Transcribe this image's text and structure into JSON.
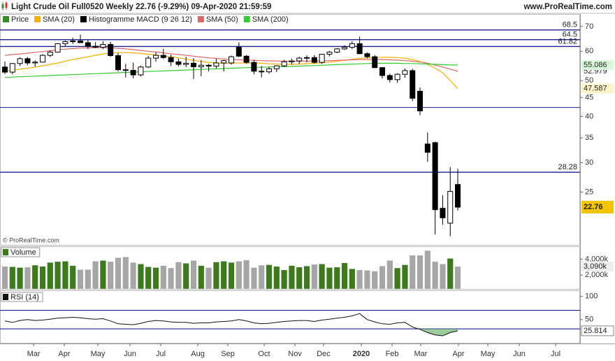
{
  "header": {
    "title": "Light Crude Oil Full0520 Weekly 22.76 (-9.29%) 09-Apr-2020 21:59:59",
    "site": "www.ProRealTime.com",
    "copyright": "© ProRealTime.com"
  },
  "chart_data": [
    {
      "type": "candlestick",
      "log_scale": true,
      "ylim": [
        18,
        75
      ],
      "xlim": [
        -0.648,
        76.2
      ],
      "yticks": [
        25,
        30,
        35,
        40,
        45,
        50,
        60,
        70
      ],
      "levels": [
        68.5,
        64.5,
        61.82,
        28.28
      ],
      "unlabeled_levels": [
        42.3
      ],
      "level_color": "#1f1f8f",
      "price_name": "Price",
      "up_color": "#ffffff",
      "down_color": "#000000",
      "legend_extra": {
        "name": "Histogramme MACD (9 26 12)",
        "color": "#000000"
      },
      "ohlc": [
        [
          54.4,
          56.3,
          52.1,
          52.7
        ],
        [
          52.7,
          55.8,
          52.0,
          55.6
        ],
        [
          55.6,
          57.8,
          54.8,
          57.3
        ],
        [
          57.3,
          57.9,
          55.0,
          55.8
        ],
        [
          55.8,
          56.7,
          54.5,
          56.1
        ],
        [
          56.1,
          58.9,
          55.9,
          58.5
        ],
        [
          58.5,
          60.4,
          57.9,
          59.7
        ],
        [
          59.7,
          63.1,
          59.5,
          62.9
        ],
        [
          62.9,
          64.2,
          61.9,
          63.7
        ],
        [
          63.7,
          65.3,
          62.8,
          64.0
        ],
        [
          64.0,
          66.6,
          63.2,
          63.3
        ],
        [
          63.3,
          64.4,
          60.9,
          61.9
        ],
        [
          61.9,
          63.5,
          61.2,
          61.5
        ],
        [
          61.5,
          63.9,
          60.8,
          62.6
        ],
        [
          62.6,
          63.6,
          58.0,
          58.4
        ],
        [
          58.4,
          59.4,
          52.9,
          53.5
        ],
        [
          53.5,
          55.5,
          51.0,
          53.3
        ],
        [
          53.3,
          55.9,
          50.7,
          51.8
        ],
        [
          51.8,
          54.9,
          51.3,
          54.4
        ],
        [
          54.4,
          58.3,
          54.1,
          57.5
        ],
        [
          57.5,
          59.6,
          56.2,
          58.5
        ],
        [
          58.5,
          60.9,
          57.2,
          57.7
        ],
        [
          57.7,
          58.8,
          54.7,
          56.2
        ],
        [
          56.2,
          57.3,
          54.6,
          55.3
        ],
        [
          55.3,
          58.0,
          54.3,
          55.7
        ],
        [
          55.7,
          57.5,
          50.5,
          54.5
        ],
        [
          54.5,
          56.8,
          51.4,
          55.0
        ],
        [
          55.0,
          55.5,
          53.0,
          54.7
        ],
        [
          54.7,
          57.2,
          53.9,
          55.8
        ],
        [
          55.8,
          56.9,
          52.9,
          56.6
        ],
        [
          55.8,
          58.4,
          55.2,
          58.0
        ],
        [
          61.5,
          63.4,
          57.9,
          58.2
        ],
        [
          58.2,
          58.6,
          55.5,
          56.0
        ],
        [
          56.0,
          57.0,
          52.0,
          53.0
        ],
        [
          53.0,
          54.8,
          51.0,
          52.8
        ],
        [
          52.8,
          54.5,
          52.2,
          53.8
        ],
        [
          53.8,
          55.0,
          52.7,
          54.8
        ],
        [
          54.8,
          56.9,
          54.4,
          56.2
        ],
        [
          56.2,
          57.3,
          55.2,
          56.5
        ],
        [
          56.5,
          58.0,
          55.4,
          57.5
        ],
        [
          57.5,
          58.5,
          56.0,
          57.7
        ],
        [
          57.7,
          58.6,
          55.6,
          56.0
        ],
        [
          56.0,
          59.0,
          55.4,
          58.9
        ],
        [
          58.9,
          60.1,
          58.1,
          59.7
        ],
        [
          59.7,
          61.2,
          59.3,
          60.9
        ],
        [
          60.9,
          62.3,
          60.5,
          61.5
        ],
        [
          61.5,
          63.9,
          60.8,
          62.9
        ],
        [
          62.9,
          65.7,
          59.0,
          59.1
        ],
        [
          59.1,
          59.6,
          57.4,
          58.0
        ],
        [
          58.0,
          58.6,
          54.0,
          54.2
        ],
        [
          54.2,
          54.4,
          50.6,
          51.6
        ],
        [
          51.6,
          52.2,
          49.4,
          50.3
        ],
        [
          50.3,
          52.3,
          49.3,
          52.0
        ],
        [
          52.0,
          53.9,
          50.9,
          53.2
        ],
        [
          53.2,
          53.8,
          44.0,
          44.8
        ],
        [
          46.8,
          47.9,
          40.3,
          41.4
        ],
        [
          33.7,
          36.2,
          30.2,
          32.0
        ],
        [
          34.0,
          34.2,
          19.2,
          22.4
        ],
        [
          22.6,
          24.5,
          20.4,
          21.3
        ],
        [
          20.6,
          29.2,
          19.0,
          25.1
        ],
        [
          26.2,
          28.9,
          22.3,
          22.76
        ]
      ],
      "series": [
        {
          "name": "SMA (20)",
          "color": "#f5b000",
          "values": [
            53.0,
            53.3,
            53.7,
            54.0,
            54.4,
            54.8,
            55.3,
            55.8,
            56.4,
            57.0,
            57.5,
            58.0,
            58.5,
            59.0,
            59.3,
            59.5,
            59.5,
            59.4,
            59.2,
            58.9,
            58.6,
            58.3,
            58.0,
            57.6,
            57.1,
            56.7,
            56.3,
            56.0,
            55.8,
            55.7,
            55.7,
            55.8,
            55.8,
            55.8,
            55.7,
            55.5,
            55.4,
            55.3,
            55.3,
            55.4,
            55.6,
            55.7,
            55.9,
            56.1,
            56.4,
            56.7,
            57.1,
            57.4,
            57.6,
            57.7,
            57.8,
            57.8,
            57.7,
            57.5,
            57.0,
            56.3,
            55.3,
            54.0,
            52.5,
            50.0,
            47.587
          ]
        },
        {
          "name": "SMA (50)",
          "color": "#e06666",
          "values": [
            58.5,
            58.8,
            59.0,
            59.3,
            59.6,
            59.9,
            60.2,
            60.5,
            60.8,
            61.0,
            61.2,
            61.3,
            61.4,
            61.4,
            61.3,
            61.1,
            60.9,
            60.6,
            60.3,
            60.0,
            59.7,
            59.4,
            59.1,
            58.8,
            58.5,
            58.2,
            57.9,
            57.6,
            57.4,
            57.2,
            57.0,
            56.9,
            56.8,
            56.7,
            56.6,
            56.5,
            56.5,
            56.4,
            56.4,
            56.4,
            56.4,
            56.5,
            56.5,
            56.6,
            56.7,
            56.8,
            56.9,
            57.0,
            57.0,
            57.0,
            57.0,
            56.9,
            56.8,
            56.6,
            56.4,
            56.1,
            55.7,
            55.1,
            54.4,
            53.7,
            52.979
          ]
        },
        {
          "name": "SMA (200)",
          "color": "#33cc33",
          "values": [
            51.0,
            51.1,
            51.2,
            51.3,
            51.4,
            51.5,
            51.6,
            51.7,
            51.8,
            51.9,
            52.0,
            52.1,
            52.2,
            52.3,
            52.4,
            52.5,
            52.6,
            52.7,
            52.8,
            52.9,
            53.0,
            53.1,
            53.2,
            53.3,
            53.4,
            53.5,
            53.6,
            53.7,
            53.8,
            53.9,
            54.0,
            54.1,
            54.2,
            54.3,
            54.3,
            54.4,
            54.5,
            54.5,
            54.6,
            54.7,
            54.8,
            54.9,
            55.0,
            55.1,
            55.2,
            55.3,
            55.4,
            55.5,
            55.6,
            55.7,
            55.7,
            55.7,
            55.7,
            55.6,
            55.6,
            55.5,
            55.4,
            55.3,
            55.2,
            55.1,
            55.086
          ]
        }
      ]
    },
    {
      "type": "bar",
      "title": "Volume",
      "ylim": [
        250,
        5550
      ],
      "xlim": [
        -0.648,
        76.2
      ],
      "yticks": [
        {
          "value": 4000,
          "label": "4,000k"
        },
        {
          "value": 2000,
          "label": "2,000k"
        }
      ],
      "up_color": "#3d7a1c",
      "down_color": "#a6a6a6",
      "values": [
        3100,
        3050,
        2950,
        3000,
        3250,
        3100,
        3600,
        3700,
        3750,
        3200,
        2700,
        2700,
        3750,
        3850,
        3700,
        4200,
        4300,
        3600,
        3400,
        3050,
        2950,
        3200,
        2900,
        3650,
        3500,
        3850,
        3200,
        2950,
        3650,
        3750,
        3600,
        3750,
        3900,
        2950,
        3250,
        3300,
        3100,
        2650,
        3200,
        3000,
        3150,
        3350,
        3400,
        2950,
        3000,
        3550,
        2800,
        2650,
        2600,
        2500,
        3150,
        3850,
        2900,
        3300,
        4500,
        4500,
        5100,
        3700,
        3400,
        4100,
        3090
      ],
      "value_labels": [
        null,
        null,
        null,
        null,
        null,
        null,
        null,
        null,
        null,
        null,
        null,
        null,
        null,
        null,
        null,
        null,
        null,
        null,
        null,
        null,
        null,
        null,
        null,
        null,
        null,
        null,
        null,
        null,
        null,
        null,
        null,
        null,
        null,
        null,
        null,
        null,
        null,
        null,
        null,
        null,
        null,
        null,
        null,
        null,
        null,
        null,
        null,
        null,
        null,
        null,
        null,
        null,
        null,
        null,
        null,
        null,
        null,
        null,
        null,
        null,
        "3,090k"
      ]
    },
    {
      "type": "line",
      "title": "RSI (14)",
      "ylim": [
        0,
        110
      ],
      "xlim": [
        -0.648,
        76.2
      ],
      "yticks": [
        100,
        50
      ],
      "unlabeled_levels": [
        70,
        30
      ],
      "level_color": "#1f1f8f",
      "color": "#111111",
      "fill_color": "#7fbf7f",
      "values": [
        47,
        44,
        48,
        50,
        48,
        49,
        51,
        53,
        54,
        55,
        54,
        52,
        51,
        52,
        47,
        41,
        40,
        39,
        42,
        46,
        48,
        47,
        45,
        44,
        44,
        42,
        43,
        43,
        45,
        46,
        47,
        50,
        47,
        43,
        41,
        42,
        44,
        46,
        47,
        48,
        48,
        46,
        49,
        51,
        53,
        55,
        58,
        63,
        50,
        45,
        41,
        40,
        43,
        44,
        34,
        29,
        22,
        17,
        15,
        22,
        25.814
      ],
      "xticks": [
        {
          "value": 3.8,
          "label": "Mar"
        },
        {
          "value": 7.87,
          "label": "Apr"
        },
        {
          "value": 12.31,
          "label": "May"
        },
        {
          "value": 16.57,
          "label": "Jun"
        },
        {
          "value": 20.65,
          "label": "Jul"
        },
        {
          "value": 25.56,
          "label": "Aug"
        },
        {
          "value": 29.54,
          "label": "Sep"
        },
        {
          "value": 34.35,
          "label": "Oct"
        },
        {
          "value": 38.43,
          "label": "Nov"
        },
        {
          "value": 42.22,
          "label": "Dec"
        },
        {
          "value": 47.22,
          "label": "2020"
        },
        {
          "value": 51.3,
          "label": "Feb"
        },
        {
          "value": 55.09,
          "label": "Mar"
        },
        {
          "value": 60.09,
          "label": "Apr"
        },
        {
          "value": 63.98,
          "label": "May"
        },
        {
          "value": 68.15,
          "label": "Jun"
        },
        {
          "value": 72.96,
          "label": "Jul"
        }
      ]
    }
  ]
}
